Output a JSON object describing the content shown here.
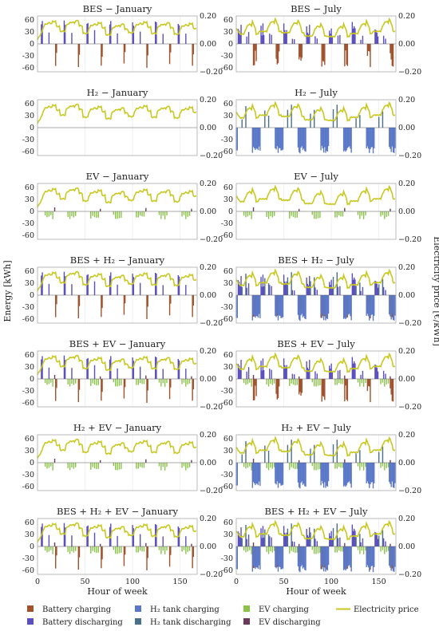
{
  "figure": {
    "ylabel_left": "Energy [kWh]",
    "ylabel_right": "Electricity price [€/kWh]",
    "xlabel": "Hour of week"
  },
  "colors": {
    "battery_charging": "#a0522d",
    "battery_discharging": "#5b4fc0",
    "h2_charging": "#5b78c8",
    "h2_discharging": "#4a6f8c",
    "ev_charging": "#8bc34a",
    "ev_discharging": "#6b3a5b",
    "price": "#c8c820"
  },
  "legend": [
    {
      "key": "battery_charging",
      "label": "Battery charging",
      "kind": "box"
    },
    {
      "key": "h2_charging",
      "label": "H₂ tank charging",
      "kind": "box"
    },
    {
      "key": "ev_charging",
      "label": "EV charging",
      "kind": "box"
    },
    {
      "key": "price",
      "label": "Electricity price",
      "kind": "line"
    },
    {
      "key": "battery_discharging",
      "label": "Battery discharging",
      "kind": "box"
    },
    {
      "key": "h2_discharging",
      "label": "H₂ tank discharging",
      "kind": "box"
    },
    {
      "key": "ev_discharging",
      "label": "EV discharging",
      "kind": "box"
    }
  ],
  "chart_data": [
    {
      "type": "bar",
      "title": "BES − January",
      "month": "jan",
      "components": [
        "bes"
      ],
      "xlim": [
        0,
        168
      ],
      "ylim": [
        -70,
        70
      ],
      "ylim_right": [
        -0.2,
        0.2
      ],
      "xticks": [
        0,
        50,
        100,
        150
      ],
      "yticks": [
        60,
        30,
        0,
        -30,
        -60
      ],
      "yticks_right": [
        "0.20",
        "0.00",
        "−0.20"
      ]
    },
    {
      "type": "bar",
      "title": "BES − July",
      "month": "jul",
      "components": [
        "bes"
      ],
      "xlim": [
        0,
        168
      ],
      "ylim": [
        -70,
        70
      ],
      "ylim_right": [
        -0.2,
        0.2
      ],
      "xticks": [
        0,
        50,
        100,
        150
      ],
      "yticks": [
        60,
        30,
        0,
        -30,
        -60
      ],
      "yticks_right": [
        "0.20",
        "0.00",
        "−0.20"
      ]
    },
    {
      "type": "bar",
      "title": "H₂ − January",
      "month": "jan",
      "components": [],
      "xlim": [
        0,
        168
      ],
      "ylim": [
        -70,
        70
      ],
      "ylim_right": [
        -0.2,
        0.2
      ],
      "xticks": [
        0,
        50,
        100,
        150
      ],
      "yticks": [
        60,
        30,
        0,
        -30,
        -60
      ],
      "yticks_right": [
        "0.20",
        "0.00",
        "−0.20"
      ]
    },
    {
      "type": "bar",
      "title": "H₂ − July",
      "month": "jul",
      "components": [
        "h2"
      ],
      "xlim": [
        0,
        168
      ],
      "ylim": [
        -70,
        70
      ],
      "ylim_right": [
        -0.2,
        0.2
      ],
      "xticks": [
        0,
        50,
        100,
        150
      ],
      "yticks": [
        60,
        30,
        0,
        -30,
        -60
      ],
      "yticks_right": [
        "0.20",
        "0.00",
        "−0.20"
      ]
    },
    {
      "type": "bar",
      "title": "EV − January",
      "month": "jan",
      "components": [
        "ev"
      ],
      "xlim": [
        0,
        168
      ],
      "ylim": [
        -70,
        70
      ],
      "ylim_right": [
        -0.2,
        0.2
      ],
      "xticks": [
        0,
        50,
        100,
        150
      ],
      "yticks": [
        60,
        30,
        0,
        -30,
        -60
      ],
      "yticks_right": [
        "0.20",
        "0.00",
        "−0.20"
      ]
    },
    {
      "type": "bar",
      "title": "EV − July",
      "month": "jul",
      "components": [
        "ev"
      ],
      "xlim": [
        0,
        168
      ],
      "ylim": [
        -70,
        70
      ],
      "ylim_right": [
        -0.2,
        0.2
      ],
      "xticks": [
        0,
        50,
        100,
        150
      ],
      "yticks": [
        60,
        30,
        0,
        -30,
        -60
      ],
      "yticks_right": [
        "0.20",
        "0.00",
        "−0.20"
      ]
    },
    {
      "type": "bar",
      "title": "BES + H₂ − January",
      "month": "jan",
      "components": [
        "bes"
      ],
      "xlim": [
        0,
        168
      ],
      "ylim": [
        -70,
        70
      ],
      "ylim_right": [
        -0.2,
        0.2
      ],
      "xticks": [
        0,
        50,
        100,
        150
      ],
      "yticks": [
        60,
        30,
        0,
        -30,
        -60
      ],
      "yticks_right": [
        "0.20",
        "0.00",
        "−0.20"
      ]
    },
    {
      "type": "bar",
      "title": "BES + H₂ − July",
      "month": "jul",
      "components": [
        "bes",
        "h2"
      ],
      "xlim": [
        0,
        168
      ],
      "ylim": [
        -70,
        70
      ],
      "ylim_right": [
        -0.2,
        0.2
      ],
      "xticks": [
        0,
        50,
        100,
        150
      ],
      "yticks": [
        60,
        30,
        0,
        -30,
        -60
      ],
      "yticks_right": [
        "0.20",
        "0.00",
        "−0.20"
      ]
    },
    {
      "type": "bar",
      "title": "BES + EV − January",
      "month": "jan",
      "components": [
        "bes",
        "ev"
      ],
      "xlim": [
        0,
        168
      ],
      "ylim": [
        -70,
        70
      ],
      "ylim_right": [
        -0.2,
        0.2
      ],
      "xticks": [
        0,
        50,
        100,
        150
      ],
      "yticks": [
        60,
        30,
        0,
        -30,
        -60
      ],
      "yticks_right": [
        "0.20",
        "0.00",
        "−0.20"
      ]
    },
    {
      "type": "bar",
      "title": "BES + EV − July",
      "month": "jul",
      "components": [
        "bes",
        "ev"
      ],
      "xlim": [
        0,
        168
      ],
      "ylim": [
        -70,
        70
      ],
      "ylim_right": [
        -0.2,
        0.2
      ],
      "xticks": [
        0,
        50,
        100,
        150
      ],
      "yticks": [
        60,
        30,
        0,
        -30,
        -60
      ],
      "yticks_right": [
        "0.20",
        "0.00",
        "−0.20"
      ]
    },
    {
      "type": "bar",
      "title": "H₂ + EV − January",
      "month": "jan",
      "components": [
        "ev"
      ],
      "xlim": [
        0,
        168
      ],
      "ylim": [
        -70,
        70
      ],
      "ylim_right": [
        -0.2,
        0.2
      ],
      "xticks": [
        0,
        50,
        100,
        150
      ],
      "yticks": [
        60,
        30,
        0,
        -30,
        -60
      ],
      "yticks_right": [
        "0.20",
        "0.00",
        "−0.20"
      ]
    },
    {
      "type": "bar",
      "title": "H₂ + EV − July",
      "month": "jul",
      "components": [
        "h2",
        "ev"
      ],
      "xlim": [
        0,
        168
      ],
      "ylim": [
        -70,
        70
      ],
      "ylim_right": [
        -0.2,
        0.2
      ],
      "xticks": [
        0,
        50,
        100,
        150
      ],
      "yticks": [
        60,
        30,
        0,
        -30,
        -60
      ],
      "yticks_right": [
        "0.20",
        "0.00",
        "−0.20"
      ]
    },
    {
      "type": "bar",
      "title": "BES + H₂ + EV − January",
      "month": "jan",
      "components": [
        "bes",
        "ev"
      ],
      "xlim": [
        0,
        168
      ],
      "ylim": [
        -70,
        70
      ],
      "ylim_right": [
        -0.2,
        0.2
      ],
      "xticks": [
        0,
        50,
        100,
        150
      ],
      "yticks": [
        60,
        30,
        0,
        -30,
        -60
      ],
      "yticks_right": [
        "0.20",
        "0.00",
        "−0.20"
      ]
    },
    {
      "type": "bar",
      "title": "BES + H₂ + EV − July",
      "month": "jul",
      "components": [
        "bes",
        "h2",
        "ev"
      ],
      "xlim": [
        0,
        168
      ],
      "ylim": [
        -70,
        70
      ],
      "ylim_right": [
        -0.2,
        0.2
      ],
      "xticks": [
        0,
        50,
        100,
        150
      ],
      "yticks": [
        60,
        30,
        0,
        -30,
        -60
      ],
      "yticks_right": [
        "0.20",
        "0.00",
        "−0.20"
      ]
    }
  ]
}
